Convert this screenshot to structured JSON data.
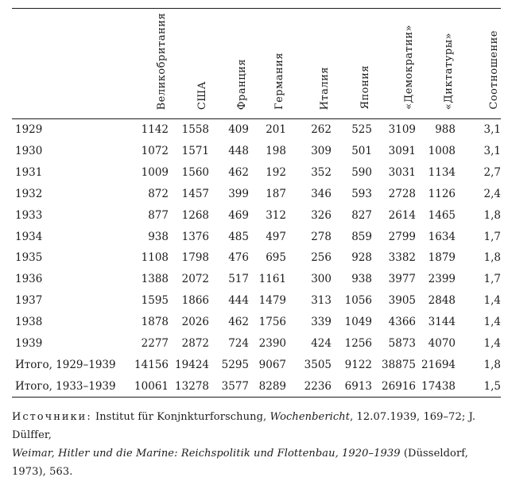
{
  "page": {
    "background": "#ffffff",
    "text_color": "#1b1b1b"
  },
  "table": {
    "columns": [
      "Великобритания",
      "США",
      "Франция",
      "Германия",
      "Италия",
      "Япония",
      "«Демократии»",
      "«Диктатуры»",
      "Соотношение"
    ],
    "rows": [
      {
        "label": "1929",
        "values": [
          "1142",
          "1558",
          "409",
          "201",
          "262",
          "525",
          "3109",
          "988",
          "3,1"
        ]
      },
      {
        "label": "1930",
        "values": [
          "1072",
          "1571",
          "448",
          "198",
          "309",
          "501",
          "3091",
          "1008",
          "3,1"
        ]
      },
      {
        "label": "1931",
        "values": [
          "1009",
          "1560",
          "462",
          "192",
          "352",
          "590",
          "3031",
          "1134",
          "2,7"
        ]
      },
      {
        "label": "1932",
        "values": [
          "872",
          "1457",
          "399",
          "187",
          "346",
          "593",
          "2728",
          "1126",
          "2,4"
        ]
      },
      {
        "label": "1933",
        "values": [
          "877",
          "1268",
          "469",
          "312",
          "326",
          "827",
          "2614",
          "1465",
          "1,8"
        ]
      },
      {
        "label": "1934",
        "values": [
          "938",
          "1376",
          "485",
          "497",
          "278",
          "859",
          "2799",
          "1634",
          "1,7"
        ]
      },
      {
        "label": "1935",
        "values": [
          "1108",
          "1798",
          "476",
          "695",
          "256",
          "928",
          "3382",
          "1879",
          "1,8"
        ]
      },
      {
        "label": "1936",
        "values": [
          "1388",
          "2072",
          "517",
          "1161",
          "300",
          "938",
          "3977",
          "2399",
          "1,7"
        ]
      },
      {
        "label": "1937",
        "values": [
          "1595",
          "1866",
          "444",
          "1479",
          "313",
          "1056",
          "3905",
          "2848",
          "1,4"
        ]
      },
      {
        "label": "1938",
        "values": [
          "1878",
          "2026",
          "462",
          "1756",
          "339",
          "1049",
          "4366",
          "3144",
          "1,4"
        ]
      },
      {
        "label": "1939",
        "values": [
          "2277",
          "2872",
          "724",
          "2390",
          "424",
          "1256",
          "5873",
          "4070",
          "1,4"
        ]
      },
      {
        "label": "Итого, 1929–1939",
        "values": [
          "14156",
          "19424",
          "5295",
          "9067",
          "3505",
          "9122",
          "38875",
          "21694",
          "1,8"
        ]
      },
      {
        "label": "Итого, 1933–1939",
        "values": [
          "10061",
          "13278",
          "3577",
          "8289",
          "2236",
          "6913",
          "26916",
          "17438",
          "1,5"
        ]
      }
    ]
  },
  "sources": {
    "label": "Источники:",
    "part1": " Institut für Konjnkturforschung, ",
    "part2_italic": "Wochenbericht",
    "part3": ", 12.07.1939, 169–72; J. Dülffer,",
    "part4_italic": "Weimar, Hitler und die Marine: Reichspolitik und Flottenbau, 1920–1939",
    "part5": " (Düsseldorf, 1973), 563."
  }
}
